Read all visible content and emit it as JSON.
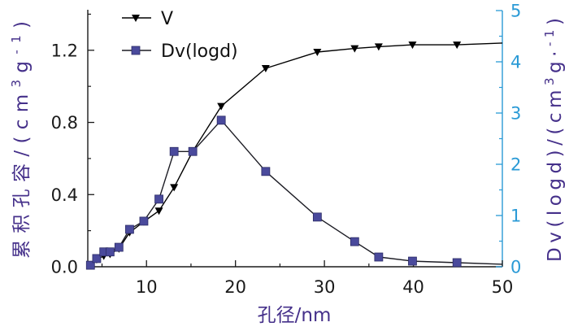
{
  "chart_data": {
    "type": "line",
    "xlabel": "孔径/nm",
    "ylabel": {
      "text": "累积孔容/(cm",
      "sup": "3",
      "unit": "g",
      "exp": "-1",
      "close": ")"
    },
    "y2label": {
      "text": "Dv(logd)/(cm",
      "sup": "3",
      "unit": "g·",
      "exp": "-1",
      "close": ")"
    },
    "xlim": [
      3.4,
      50
    ],
    "ylim": [
      0,
      1.42
    ],
    "y2lim": [
      0,
      5
    ],
    "xticks": [
      "10",
      "20",
      "30",
      "40",
      "50"
    ],
    "yticks": [
      "0.0",
      "0.4",
      "0.8",
      "1.2"
    ],
    "y2ticks": [
      "0",
      "1",
      "2",
      "3",
      "4",
      "5"
    ],
    "grid": false,
    "legend": "top-left",
    "x": [
      3.7,
      4.4,
      5.2,
      5.9,
      6.9,
      8.1,
      9.7,
      11.4,
      13.1,
      15.2,
      18.4,
      23.4,
      29.2,
      33.4,
      36.1,
      39.9,
      44.9,
      50.0
    ],
    "series": [
      {
        "name": "V",
        "axis": "left",
        "marker": "triangle-down",
        "line_color": "#000000",
        "marker_color": "#000000",
        "values": [
          0.01,
          0.04,
          0.06,
          0.07,
          0.1,
          0.19,
          0.25,
          0.31,
          0.44,
          0.64,
          0.89,
          1.1,
          1.19,
          1.21,
          1.22,
          1.23,
          1.23,
          1.24
        ]
      },
      {
        "name": "Dv(logd)",
        "axis": "right",
        "marker": "square",
        "line_color": "#1c1c24",
        "marker_color": "#4a4a9c",
        "values": [
          0.03,
          0.16,
          0.29,
          0.29,
          0.38,
          0.73,
          0.89,
          1.32,
          2.25,
          2.25,
          2.86,
          1.86,
          0.97,
          0.49,
          0.19,
          0.11,
          0.08,
          0.05
        ]
      }
    ]
  },
  "colors": {
    "axis_label": "#45308a",
    "left_axis": "#1a1a1a",
    "right_axis": "#2a9ad6"
  }
}
